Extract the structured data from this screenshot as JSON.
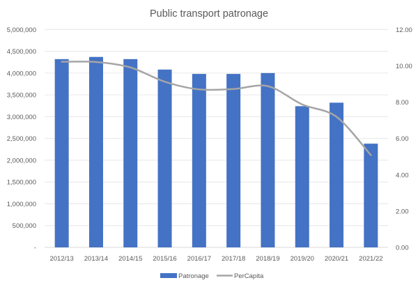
{
  "chart_data": {
    "type": "bar+line",
    "title": "Public transport patronage",
    "categories": [
      "2012/13",
      "2013/14",
      "2014/15",
      "2015/16",
      "2016/17",
      "2017/18",
      "2018/19",
      "2019/20",
      "2020/21",
      "2021/22"
    ],
    "series": [
      {
        "name": "Patronage",
        "type": "bar",
        "axis": "left",
        "color": "#4472C4",
        "values": [
          4320000,
          4370000,
          4320000,
          4080000,
          3980000,
          3980000,
          4000000,
          3240000,
          3320000,
          2380000
        ]
      },
      {
        "name": "PerCapita",
        "type": "line",
        "axis": "right",
        "color": "#A5A5A5",
        "values": [
          10.22,
          10.21,
          9.91,
          9.12,
          8.7,
          8.72,
          8.88,
          7.87,
          7.19,
          5.08
        ]
      }
    ],
    "left_axis": {
      "ylim": [
        0,
        5000000
      ],
      "ticks": [
        "-",
        "500,000",
        "1,000,000",
        "1,500,000",
        "2,000,000",
        "2,500,000",
        "3,000,000",
        "3,500,000",
        "4,000,000",
        "4,500,000",
        "5,000,000"
      ]
    },
    "right_axis": {
      "ylim": [
        0,
        12
      ],
      "ticks": [
        "0.00",
        "2.00",
        "4.00",
        "6.00",
        "8.00",
        "10.00",
        "12.00"
      ]
    },
    "grid": true,
    "legend": "bottom",
    "xlabel": "",
    "ylabel": ""
  }
}
